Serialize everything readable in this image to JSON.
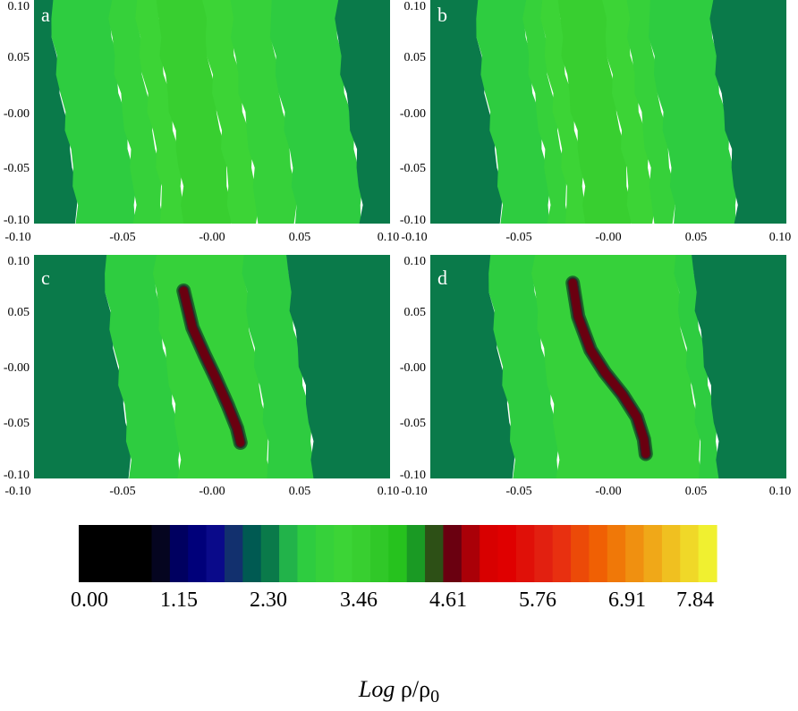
{
  "chart_data": [
    {
      "type": "heatmap",
      "panel_label": "a",
      "x_ticks": [
        "-0.10",
        "-0.05",
        "-0.00",
        "0.05",
        "0.10"
      ],
      "y_ticks": [
        "0.10",
        "0.05",
        "-0.00",
        "-0.05",
        "-0.10"
      ],
      "xlim": [
        -0.1,
        0.1
      ],
      "ylim": [
        -0.1,
        0.1
      ],
      "bands_log_rho": [
        {
          "from_x": -0.1,
          "to_x": -0.083,
          "value": 2.4
        },
        {
          "from_x": -0.083,
          "to_x": -0.05,
          "value": 2.9
        },
        {
          "from_x": -0.05,
          "to_x": -0.035,
          "value": 3.1
        },
        {
          "from_x": -0.035,
          "to_x": -0.023,
          "value": 3.3
        },
        {
          "from_x": -0.023,
          "to_x": 0.003,
          "value": 3.5
        },
        {
          "from_x": 0.003,
          "to_x": 0.018,
          "value": 3.3
        },
        {
          "from_x": 0.018,
          "to_x": 0.04,
          "value": 3.1
        },
        {
          "from_x": 0.04,
          "to_x": 0.077,
          "value": 2.9
        },
        {
          "from_x": 0.077,
          "to_x": 0.1,
          "value": 2.4
        }
      ],
      "filament": null
    },
    {
      "type": "heatmap",
      "panel_label": "b",
      "x_ticks": [
        "-0.10",
        "-0.05",
        "-0.00",
        "0.05",
        "0.10"
      ],
      "y_ticks": [
        "0.10",
        "0.05",
        "-0.00",
        "-0.05",
        "-0.10"
      ],
      "xlim": [
        -0.1,
        0.1
      ],
      "ylim": [
        -0.1,
        0.1
      ],
      "bands_log_rho": [
        {
          "from_x": -0.1,
          "to_x": -0.067,
          "value": 2.4
        },
        {
          "from_x": -0.067,
          "to_x": -0.04,
          "value": 2.9
        },
        {
          "from_x": -0.04,
          "to_x": -0.03,
          "value": 3.1
        },
        {
          "from_x": -0.03,
          "to_x": -0.02,
          "value": 3.3
        },
        {
          "from_x": -0.02,
          "to_x": 0.005,
          "value": 3.5
        },
        {
          "from_x": 0.005,
          "to_x": 0.018,
          "value": 3.3
        },
        {
          "from_x": 0.018,
          "to_x": 0.03,
          "value": 3.1
        },
        {
          "from_x": 0.03,
          "to_x": 0.065,
          "value": 2.9
        },
        {
          "from_x": 0.065,
          "to_x": 0.1,
          "value": 2.4
        }
      ],
      "filament": null
    },
    {
      "type": "heatmap",
      "panel_label": "c",
      "x_ticks": [
        "-0.10",
        "-0.05",
        "-0.00",
        "0.05",
        "0.10"
      ],
      "y_ticks": [
        "0.10",
        "0.05",
        "-0.00",
        "-0.05",
        "-0.10"
      ],
      "xlim": [
        -0.1,
        0.1
      ],
      "ylim": [
        -0.1,
        0.1
      ],
      "bands_log_rho": [
        {
          "from_x": -0.1,
          "to_x": -0.053,
          "value": 2.4
        },
        {
          "from_x": -0.053,
          "to_x": -0.025,
          "value": 2.9
        },
        {
          "from_x": -0.025,
          "to_x": 0.025,
          "value": 3.1
        },
        {
          "from_x": 0.025,
          "to_x": 0.05,
          "value": 2.9
        },
        {
          "from_x": 0.05,
          "to_x": 0.1,
          "value": 2.4
        }
      ],
      "filament": {
        "value": 4.7,
        "points": [
          [
            -0.016,
            0.068
          ],
          [
            -0.011,
            0.035
          ],
          [
            -0.004,
            0.01
          ],
          [
            0.002,
            -0.01
          ],
          [
            0.009,
            -0.035
          ],
          [
            0.014,
            -0.055
          ],
          [
            0.016,
            -0.068
          ]
        ]
      }
    },
    {
      "type": "heatmap",
      "panel_label": "d",
      "x_ticks": [
        "-0.10",
        "-0.05",
        "-0.00",
        "0.05",
        "0.10"
      ],
      "y_ticks": [
        "0.10",
        "0.05",
        "-0.00",
        "-0.05",
        "-0.10"
      ],
      "xlim": [
        -0.1,
        0.1
      ],
      "ylim": [
        -0.1,
        0.1
      ],
      "bands_log_rho": [
        {
          "from_x": -0.1,
          "to_x": -0.06,
          "value": 2.4
        },
        {
          "from_x": -0.06,
          "to_x": -0.035,
          "value": 2.9
        },
        {
          "from_x": -0.035,
          "to_x": 0.045,
          "value": 3.1
        },
        {
          "from_x": 0.045,
          "to_x": 0.055,
          "value": 2.9
        },
        {
          "from_x": 0.055,
          "to_x": 0.1,
          "value": 2.4
        }
      ],
      "filament": {
        "value": 4.7,
        "points": [
          [
            -0.02,
            0.075
          ],
          [
            -0.017,
            0.045
          ],
          [
            -0.01,
            0.015
          ],
          [
            -0.002,
            -0.005
          ],
          [
            0.008,
            -0.025
          ],
          [
            0.016,
            -0.045
          ],
          [
            0.02,
            -0.065
          ],
          [
            0.021,
            -0.078
          ]
        ]
      }
    }
  ],
  "colorbar": {
    "label_prefix": "Log",
    "label_quantity": "ρ/ρ",
    "label_subscript": "0",
    "min": 0.0,
    "max": 7.84,
    "tick_labels": [
      "0.00",
      "1.15",
      "2.30",
      "3.46",
      "4.61",
      "5.76",
      "6.91",
      "7.84"
    ],
    "colors": [
      "#000000",
      "#000000",
      "#000000",
      "#000000",
      "#050520",
      "#000060",
      "#00007a",
      "#0a0a8a",
      "#12306e",
      "#005a52",
      "#0a7a4a",
      "#22b34a",
      "#2ecc40",
      "#36d13a",
      "#3cd436",
      "#38cf30",
      "#30c828",
      "#26c21e",
      "#1a9a24",
      "#2d5016",
      "#6a0010",
      "#aa0008",
      "#d80000",
      "#e00000",
      "#e01008",
      "#e22010",
      "#e83010",
      "#ec4a08",
      "#f06004",
      "#f07808",
      "#f09010",
      "#f0a818",
      "#f0c020",
      "#f0d828",
      "#f0f030"
    ]
  }
}
